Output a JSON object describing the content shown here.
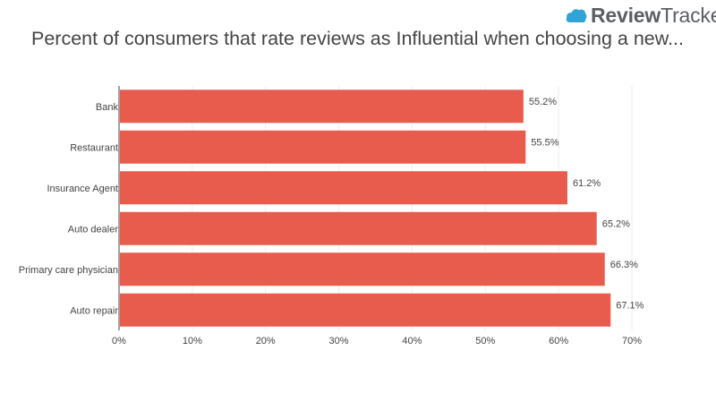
{
  "brand": {
    "name_part1": "Review",
    "name_part2": "Trackers",
    "icon": "cloud-icon",
    "icon_color": "#2fa3d6"
  },
  "chart_data": {
    "type": "bar",
    "orientation": "horizontal",
    "title": "Percent of consumers that rate reviews as Influential when choosing a new...",
    "categories": [
      "Bank",
      "Restaurant",
      "Insurance Agent",
      "Auto dealer",
      "Primary care physician",
      "Auto repair"
    ],
    "values": [
      55.2,
      55.5,
      61.2,
      65.2,
      66.3,
      67.1
    ],
    "value_labels": [
      "55.2%",
      "55.5%",
      "61.2%",
      "65.2%",
      "66.3%",
      "67.1%"
    ],
    "xlim": [
      0,
      70
    ],
    "xticks": [
      0,
      10,
      20,
      30,
      40,
      50,
      60,
      70
    ],
    "xtick_labels": [
      "0%",
      "10%",
      "20%",
      "30%",
      "40%",
      "50%",
      "60%",
      "70%"
    ],
    "bar_color": "#e85c4e",
    "grid": true,
    "xlabel": "",
    "ylabel": ""
  }
}
